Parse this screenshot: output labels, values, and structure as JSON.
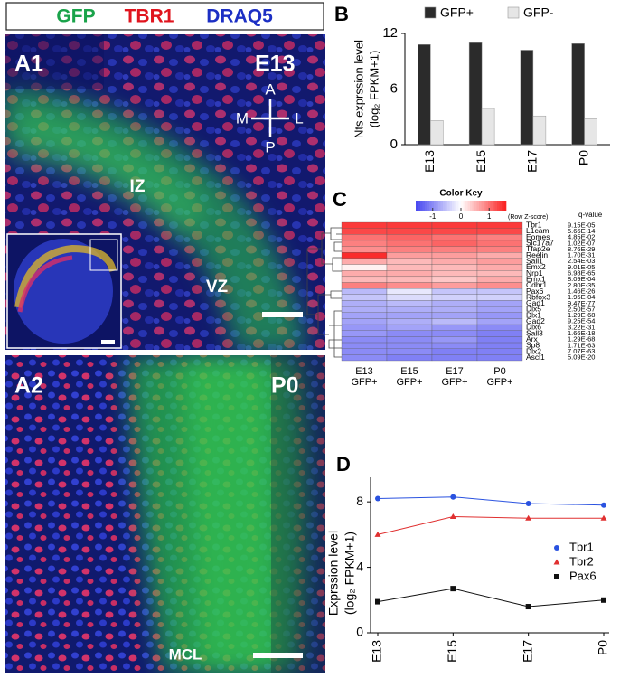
{
  "panel_a": {
    "legend": [
      {
        "text": "GFP",
        "color": "#1aa34a"
      },
      {
        "text": "TBR1",
        "color": "#e0141e"
      },
      {
        "text": "DRAQ5",
        "color": "#1c2fc4"
      }
    ],
    "a1": {
      "label": "A1",
      "stage": "E13",
      "compass": [
        "A",
        "M",
        "L",
        "P"
      ],
      "regions": [
        "IZ",
        "VZ"
      ]
    },
    "a2": {
      "label": "A2",
      "stage": "P0",
      "regions": [
        "MCL"
      ]
    }
  },
  "chart_data": [
    {
      "type": "bar",
      "panel": "B",
      "ylabel": [
        "Nts exprssion level",
        "(log₂ FPKM+1)"
      ],
      "categories": [
        "E13",
        "E15",
        "E17",
        "P0"
      ],
      "series": [
        {
          "name": "GFP+",
          "color": "#2b2b2b",
          "values": [
            10.8,
            11.0,
            10.2,
            10.9
          ]
        },
        {
          "name": "GFP-",
          "color": "#e6e6e6",
          "values": [
            2.6,
            3.9,
            3.1,
            2.8
          ]
        }
      ],
      "ylim": [
        0,
        12
      ],
      "yticks": [
        0,
        6,
        12
      ]
    },
    {
      "type": "heatmap",
      "panel": "C",
      "colorbar_title": "Color Key",
      "colorbar_label": "(Row Z-score)",
      "colorbar_ticks": [
        -1,
        0,
        1
      ],
      "zlim": [
        -1.6,
        1.6
      ],
      "q_header": "q-value",
      "columns": [
        "E13 GFP+",
        "E15 GFP+",
        "E17 GFP+",
        "P0 GFP+"
      ],
      "rows": [
        "Tbr1",
        "L1cam",
        "Eomes",
        "Slc17a7",
        "Tfap2e",
        "Reelin",
        "Sall1",
        "Emx2",
        "Nrp1",
        "Emx1",
        "Cdhr1",
        "Pax6",
        "Rbfox3",
        "Gad1",
        "Dlx5",
        "Dlx1",
        "Gad2",
        "Dlx6",
        "Sall3",
        "Arx",
        "Sp8",
        "Dlx2",
        "Ascl1"
      ],
      "q_values": [
        "9.15E-05",
        "5.66E-14",
        "4.85E-02",
        "1.02E-07",
        "8.76E-29",
        "1.70E-31",
        "2.54E-03",
        "9.01E-05",
        "6.98E-65",
        "8.09E-04",
        "2.80E-35",
        "1.46E-26",
        "1.95E-04",
        "9.47E-77",
        "2.50E-57",
        "1.29E-68",
        "9.25E-54",
        "3.22E-31",
        "1.66E-18",
        "1.29E-68",
        "1.71E-63",
        "7.07E-63",
        "5.09E-20"
      ],
      "values": [
        [
          1.4,
          1.4,
          1.4,
          1.4
        ],
        [
          1.3,
          1.3,
          1.3,
          1.3
        ],
        [
          1.0,
          1.1,
          1.0,
          0.9
        ],
        [
          0.9,
          1.0,
          1.1,
          1.0
        ],
        [
          0.8,
          0.9,
          0.9,
          0.9
        ],
        [
          1.5,
          0.7,
          0.7,
          0.6
        ],
        [
          0.6,
          0.5,
          0.6,
          0.7
        ],
        [
          0.1,
          0.5,
          0.5,
          0.6
        ],
        [
          0.6,
          0.6,
          0.5,
          0.5
        ],
        [
          0.5,
          0.5,
          0.4,
          0.6
        ],
        [
          0.9,
          0.8,
          0.7,
          0.8
        ],
        [
          -0.6,
          -0.2,
          -0.5,
          -0.5
        ],
        [
          -0.5,
          -0.3,
          -0.4,
          -0.4
        ],
        [
          -0.7,
          -0.6,
          -0.7,
          -0.8
        ],
        [
          -0.7,
          -0.7,
          -0.7,
          -0.8
        ],
        [
          -0.8,
          -0.8,
          -0.8,
          -0.9
        ],
        [
          -0.8,
          -0.7,
          -0.6,
          -0.8
        ],
        [
          -0.9,
          -0.8,
          -0.9,
          -1.0
        ],
        [
          -0.9,
          -1.0,
          -1.0,
          -1.1
        ],
        [
          -1.0,
          -1.0,
          -0.9,
          -1.1
        ],
        [
          -1.0,
          -1.0,
          -1.0,
          -1.1
        ],
        [
          -1.0,
          -1.0,
          -1.1,
          -1.1
        ],
        [
          -1.0,
          -1.1,
          -1.1,
          -1.1
        ]
      ]
    },
    {
      "type": "line",
      "panel": "D",
      "ylabel": [
        "Exprssion level",
        "(log₂ FPKM+1)"
      ],
      "categories": [
        "E13",
        "E15",
        "E17",
        "P0"
      ],
      "series": [
        {
          "name": "Tbr1",
          "color": "#2a52e0",
          "marker": "circle",
          "values": [
            8.2,
            8.3,
            7.9,
            7.8
          ]
        },
        {
          "name": "Tbr2",
          "color": "#e03030",
          "marker": "triangle",
          "values": [
            6.0,
            7.1,
            7.0,
            7.0
          ]
        },
        {
          "name": "Pax6",
          "color": "#111111",
          "marker": "square",
          "values": [
            1.9,
            2.7,
            1.6,
            2.0
          ]
        }
      ],
      "ylim": [
        0,
        9.5
      ],
      "yticks": [
        0,
        4,
        8
      ]
    }
  ]
}
